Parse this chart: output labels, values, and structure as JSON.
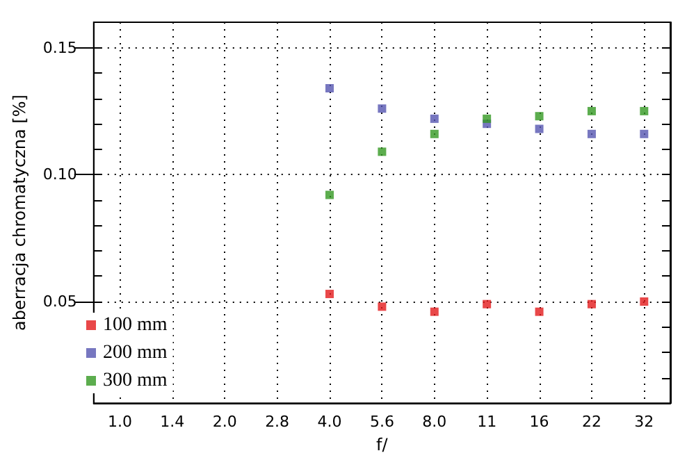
{
  "chart_data": {
    "type": "scatter",
    "xlabel": "f/",
    "ylabel": "aberracja chromatyczna [%]",
    "categories": [
      "1.0",
      "1.4",
      "2.0",
      "2.8",
      "4.0",
      "5.6",
      "8.0",
      "11",
      "16",
      "22",
      "32"
    ],
    "series": [
      {
        "name": "100 mm",
        "color": "#e31a1c",
        "values": [
          null,
          null,
          null,
          null,
          0.053,
          0.048,
          0.046,
          0.049,
          0.046,
          0.049,
          0.05
        ]
      },
      {
        "name": "200 mm",
        "color": "#5555b0",
        "values": [
          null,
          null,
          null,
          null,
          0.134,
          0.126,
          0.122,
          0.12,
          0.118,
          0.116,
          0.116
        ]
      },
      {
        "name": "300 mm",
        "color": "#339922",
        "values": [
          null,
          null,
          null,
          null,
          0.092,
          0.109,
          0.116,
          0.122,
          0.123,
          0.125,
          0.125
        ]
      }
    ],
    "ylim": [
      0.01,
      0.16
    ],
    "yticks": [
      {
        "value": 0.02,
        "label": null
      },
      {
        "value": 0.03,
        "label": null
      },
      {
        "value": 0.04,
        "label": null
      },
      {
        "value": 0.05,
        "label": "0.05"
      },
      {
        "value": 0.06,
        "label": null
      },
      {
        "value": 0.07,
        "label": null
      },
      {
        "value": 0.08,
        "label": null
      },
      {
        "value": 0.09,
        "label": null
      },
      {
        "value": 0.1,
        "label": "0.10"
      },
      {
        "value": 0.11,
        "label": null
      },
      {
        "value": 0.12,
        "label": null
      },
      {
        "value": 0.13,
        "label": null
      },
      {
        "value": 0.14,
        "label": null
      },
      {
        "value": 0.15,
        "label": "0.15"
      }
    ],
    "grid": true,
    "legend": "bottom left",
    "marker": "square"
  }
}
